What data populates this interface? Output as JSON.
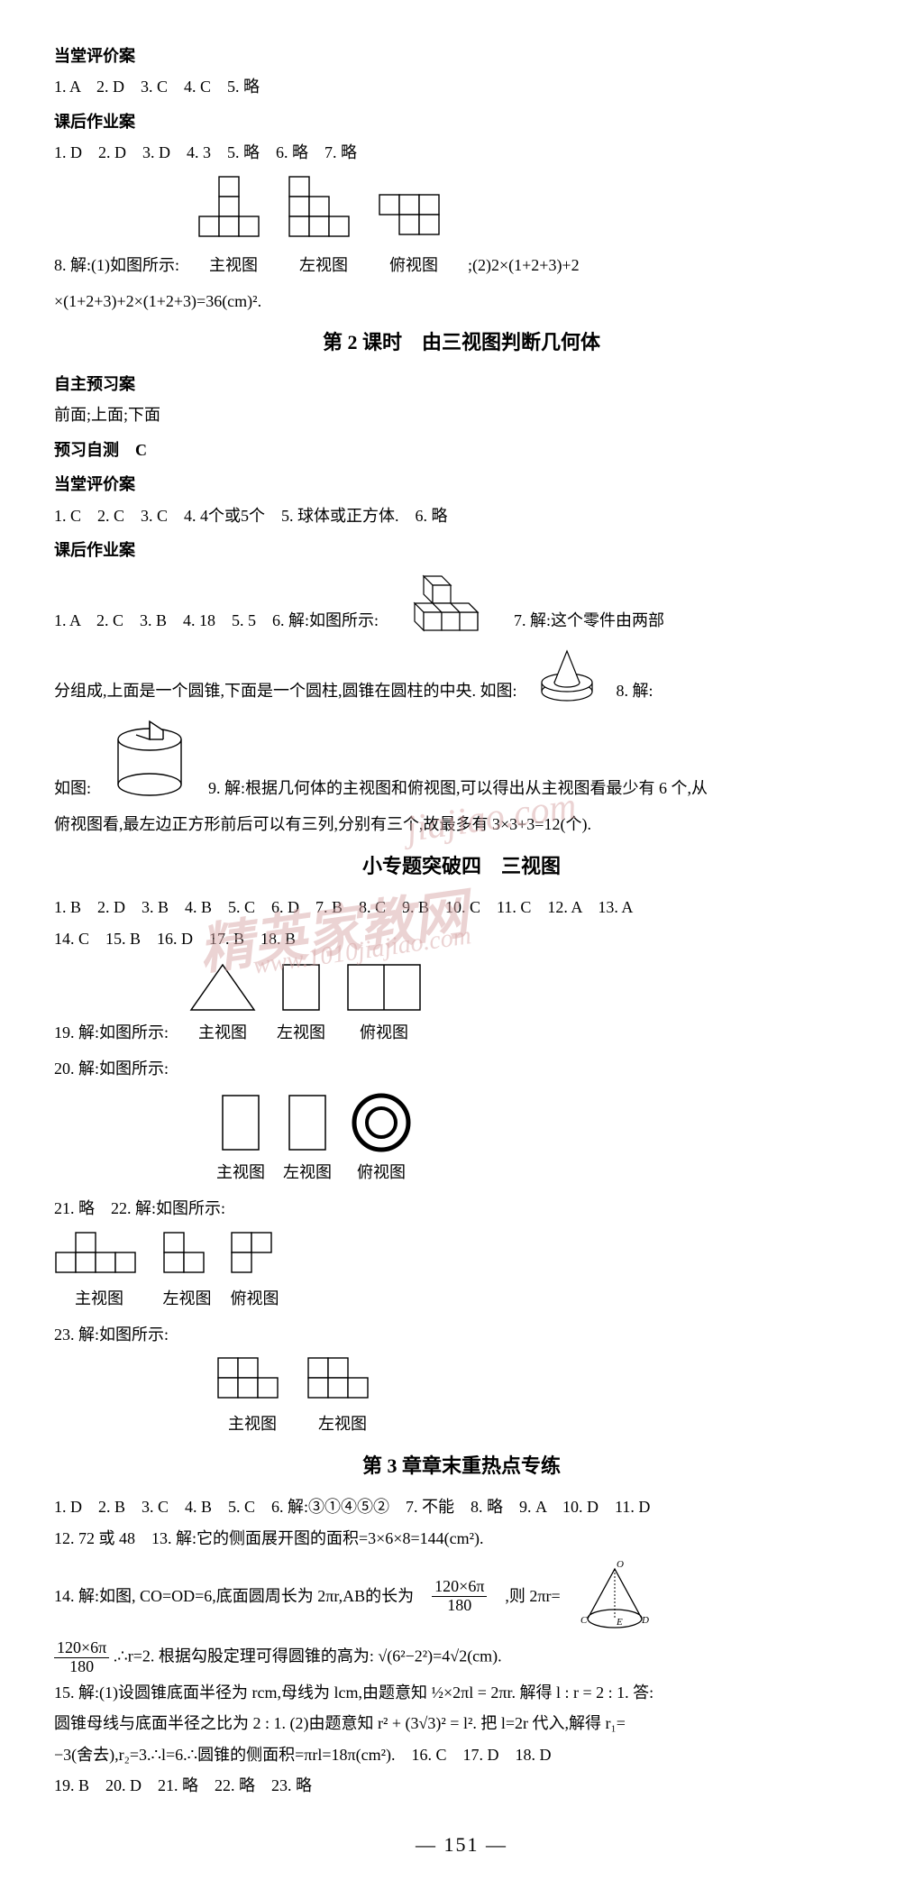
{
  "section1": {
    "title1": "当堂评价案",
    "line1": "1. A　2. D　3. C　4. C　5. 略",
    "title2": "课后作业案",
    "line2": "1. D　2. D　3. D　4. 3　5. 略　6. 略　7. 略",
    "q8_prefix": "8. 解:(1)如图所示:",
    "q8_suffix": ";(2)2×(1+2+3)+2",
    "q8_cont": "×(1+2+3)+2×(1+2+3)=36(cm)².",
    "views": {
      "front": "主视图",
      "left": "左视图",
      "top": "俯视图"
    }
  },
  "lesson2_heading": "第 2 课时　由三视图判断几何体",
  "section2": {
    "title1": "自主预习案",
    "line1": "前面;上面;下面",
    "title2": "预习自测　C",
    "title3": "当堂评价案",
    "line2": "1. C　2. C　3. C　4. 4个或5个　5. 球体或正方体.　6. 略",
    "title4": "课后作业案",
    "line3a": "1. A　2. C　3. B　4. 18　5. 5　6. 解:如图所示:",
    "line3b": "7. 解:这个零件由两部",
    "line4a": "分组成,上面是一个圆锥,下面是一个圆柱,圆锥在圆柱的中央. 如图:",
    "line4b": "8. 解:",
    "line5a": "如图:",
    "line5b": "9. 解:根据几何体的主视图和俯视图,可以得出从主视图看最少有 6 个,从",
    "line6": "俯视图看,最左边正方形前后可以有三列,分别有三个,故最多有 3×3+3=12(个)."
  },
  "topic4_heading": "小专题突破四　三视图",
  "section3": {
    "line1": "1. B　2. D　3. B　4. B　5. C　6. D　7. B　8. C　9. B　10. C　11. C　12. A　13. A",
    "line2": "14. C　15. B　16. D　17. B　18. B",
    "q19": "19. 解:如图所示:",
    "q20": "20. 解:如图所示:",
    "q21_22": "21. 略　22. 解:如图所示:",
    "q23": "23. 解:如图所示:",
    "views": {
      "front": "主视图",
      "left": "左视图",
      "top": "俯视图"
    }
  },
  "chapter3_heading": "第 3 章章末重热点专练",
  "section4": {
    "line1": "1. D　2. B　3. C　4. B　5. C　6. 解:③①④⑤②　7. 不能　8. 略　9. A　10. D　11. D",
    "line2": "12. 72 或 48　13. 解:它的侧面展开图的面积=3×6×8=144(cm²).",
    "line3a": "14. 解:如图, CO=OD=6,底面圆周长为 2πr,AB的长为",
    "line3b": ",则 2πr=",
    "line4a": ".∴r=2. 根据勾股定理可得圆锥的高为: √(6²−2²)=4√2(cm).",
    "frac1_num": "120×6π",
    "frac1_den": "180",
    "line5": "15. 解:(1)设圆锥底面半径为 rcm,母线为 lcm,由题意知 ½×2πl = 2πr. 解得 l : r = 2 : 1. 答:",
    "line6": "圆锥母线与底面半径之比为 2 : 1. (2)由题意知 r² + (3√3)² = l². 把 l=2r 代入,解得 r₁=",
    "line7": "−3(舍去),r₂=3.∴l=6.∴圆锥的侧面积=πrl=18π(cm²).　16. C　17. D　18. D",
    "line8": "19. B　20. D　21. 略　22. 略　23. 略"
  },
  "page_number": "— 151 —",
  "colors": {
    "text": "#000000",
    "bg": "#ffffff",
    "stroke": "#000000",
    "watermark": "#d9a8a8"
  },
  "watermark": {
    "text1": "精英家教网",
    "text2": "jiajiao.com",
    "text3": "www.1010jiajiao.com"
  },
  "diagrams": {
    "cell": 22,
    "q8_front": [
      [
        1,
        0
      ],
      [
        1,
        1
      ],
      [
        0,
        2
      ],
      [
        1,
        2
      ],
      [
        2,
        2
      ]
    ],
    "q8_left": [
      [
        0,
        0
      ],
      [
        0,
        1
      ],
      [
        1,
        1
      ],
      [
        0,
        2
      ],
      [
        1,
        2
      ],
      [
        2,
        2
      ]
    ],
    "q8_top": [
      [
        0,
        0
      ],
      [
        1,
        0
      ],
      [
        2,
        0
      ],
      [
        1,
        1
      ],
      [
        2,
        1
      ]
    ],
    "q19_front_triangle": true,
    "q19_left_rect": {
      "w": 1,
      "h": 1.4
    },
    "q19_top_rect2": {
      "w": 2,
      "h": 1.4
    },
    "q20_front": {
      "w": 1,
      "h": 1.6
    },
    "q20_left": {
      "w": 1,
      "h": 1.6
    },
    "q20_top_ring": true,
    "q22_front": [
      [
        1,
        0
      ],
      [
        0,
        1
      ],
      [
        1,
        1
      ],
      [
        2,
        1
      ],
      [
        3,
        1
      ]
    ],
    "q22_left": [
      [
        0,
        0
      ],
      [
        0,
        1
      ],
      [
        1,
        1
      ]
    ],
    "q22_top": [
      [
        0,
        0
      ],
      [
        1,
        0
      ],
      [
        0,
        1
      ]
    ],
    "q23_front": [
      [
        0,
        0
      ],
      [
        1,
        0
      ],
      [
        0,
        1
      ],
      [
        1,
        1
      ],
      [
        2,
        1
      ]
    ],
    "q23_left": [
      [
        0,
        0
      ],
      [
        1,
        0
      ],
      [
        0,
        1
      ],
      [
        1,
        1
      ],
      [
        2,
        1
      ]
    ]
  }
}
